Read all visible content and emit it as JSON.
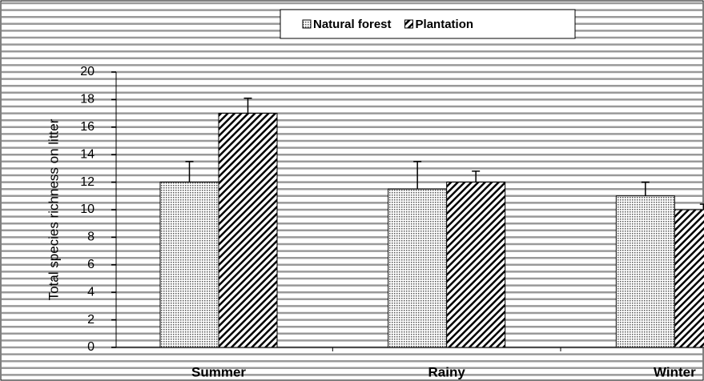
{
  "chart_data": {
    "type": "bar",
    "y_label": "Total species richness on litter",
    "categories": [
      "Summer",
      "Rainy",
      "Winter"
    ],
    "series": [
      {
        "name": "Natural forest",
        "color": "#bbbbbb",
        "values": [
          12,
          11.5,
          11
        ],
        "errors": [
          1.5,
          2,
          1
        ]
      },
      {
        "name": "Plantation",
        "color": "#333333",
        "values": [
          17,
          12,
          10
        ],
        "errors": [
          1.1,
          0.8,
          0.4
        ]
      }
    ],
    "ylim": [
      0,
      20
    ],
    "yticks": [
      0,
      2,
      4,
      6,
      8,
      10,
      12,
      14,
      16,
      18,
      20
    ],
    "grid": true,
    "legend": "top"
  }
}
